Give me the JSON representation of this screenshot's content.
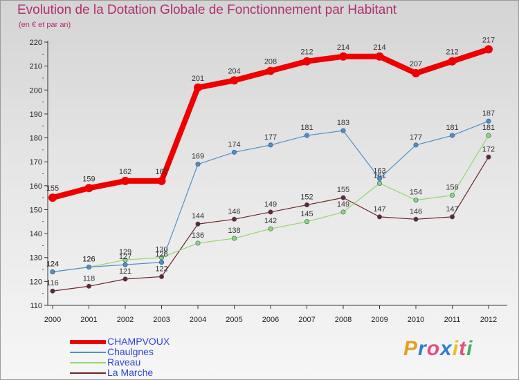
{
  "chart_data": {
    "type": "line",
    "title": "Evolution de la Dotation Globale de Fonctionnement par Habitant",
    "subtitle": "(en € et par an)",
    "xlabel": "",
    "ylabel": "",
    "x": [
      "2000",
      "2001",
      "2002",
      "2003",
      "2004",
      "2005",
      "2006",
      "2007",
      "2008",
      "2009",
      "2010",
      "2011",
      "2012"
    ],
    "ylim": [
      110,
      220
    ],
    "yticks": [
      110,
      120,
      130,
      140,
      150,
      160,
      170,
      180,
      190,
      200,
      210,
      220
    ],
    "series": [
      {
        "name": "CHAMPVOUX",
        "color": "#ee0000",
        "values": [
          155,
          159,
          162,
          162,
          201,
          204,
          208,
          212,
          214,
          214,
          207,
          212,
          217
        ]
      },
      {
        "name": "Chaulgnes",
        "color": "#4f8fc8",
        "values": [
          124,
          126,
          127,
          128,
          169,
          174,
          177,
          181,
          183,
          163,
          177,
          181,
          187
        ]
      },
      {
        "name": "Raveau",
        "color": "#8fd86a",
        "values": [
          124,
          126,
          129,
          130,
          136,
          138,
          142,
          145,
          149,
          161,
          154,
          156,
          181
        ]
      },
      {
        "name": "La Marche",
        "color": "#6e2424",
        "values": [
          116,
          118,
          121,
          122,
          144,
          146,
          149,
          152,
          155,
          147,
          146,
          147,
          172
        ]
      }
    ],
    "legend_position": "bottom-left"
  },
  "logo": {
    "text": "Proxiti",
    "letters": [
      "P",
      "r",
      "o",
      "x",
      "i",
      "t",
      "i"
    ],
    "colors": [
      "#e0a020",
      "#2f7fd0",
      "#e05080",
      "#2f7fd0",
      "#e8c020",
      "#e05080",
      "#40b060"
    ]
  }
}
